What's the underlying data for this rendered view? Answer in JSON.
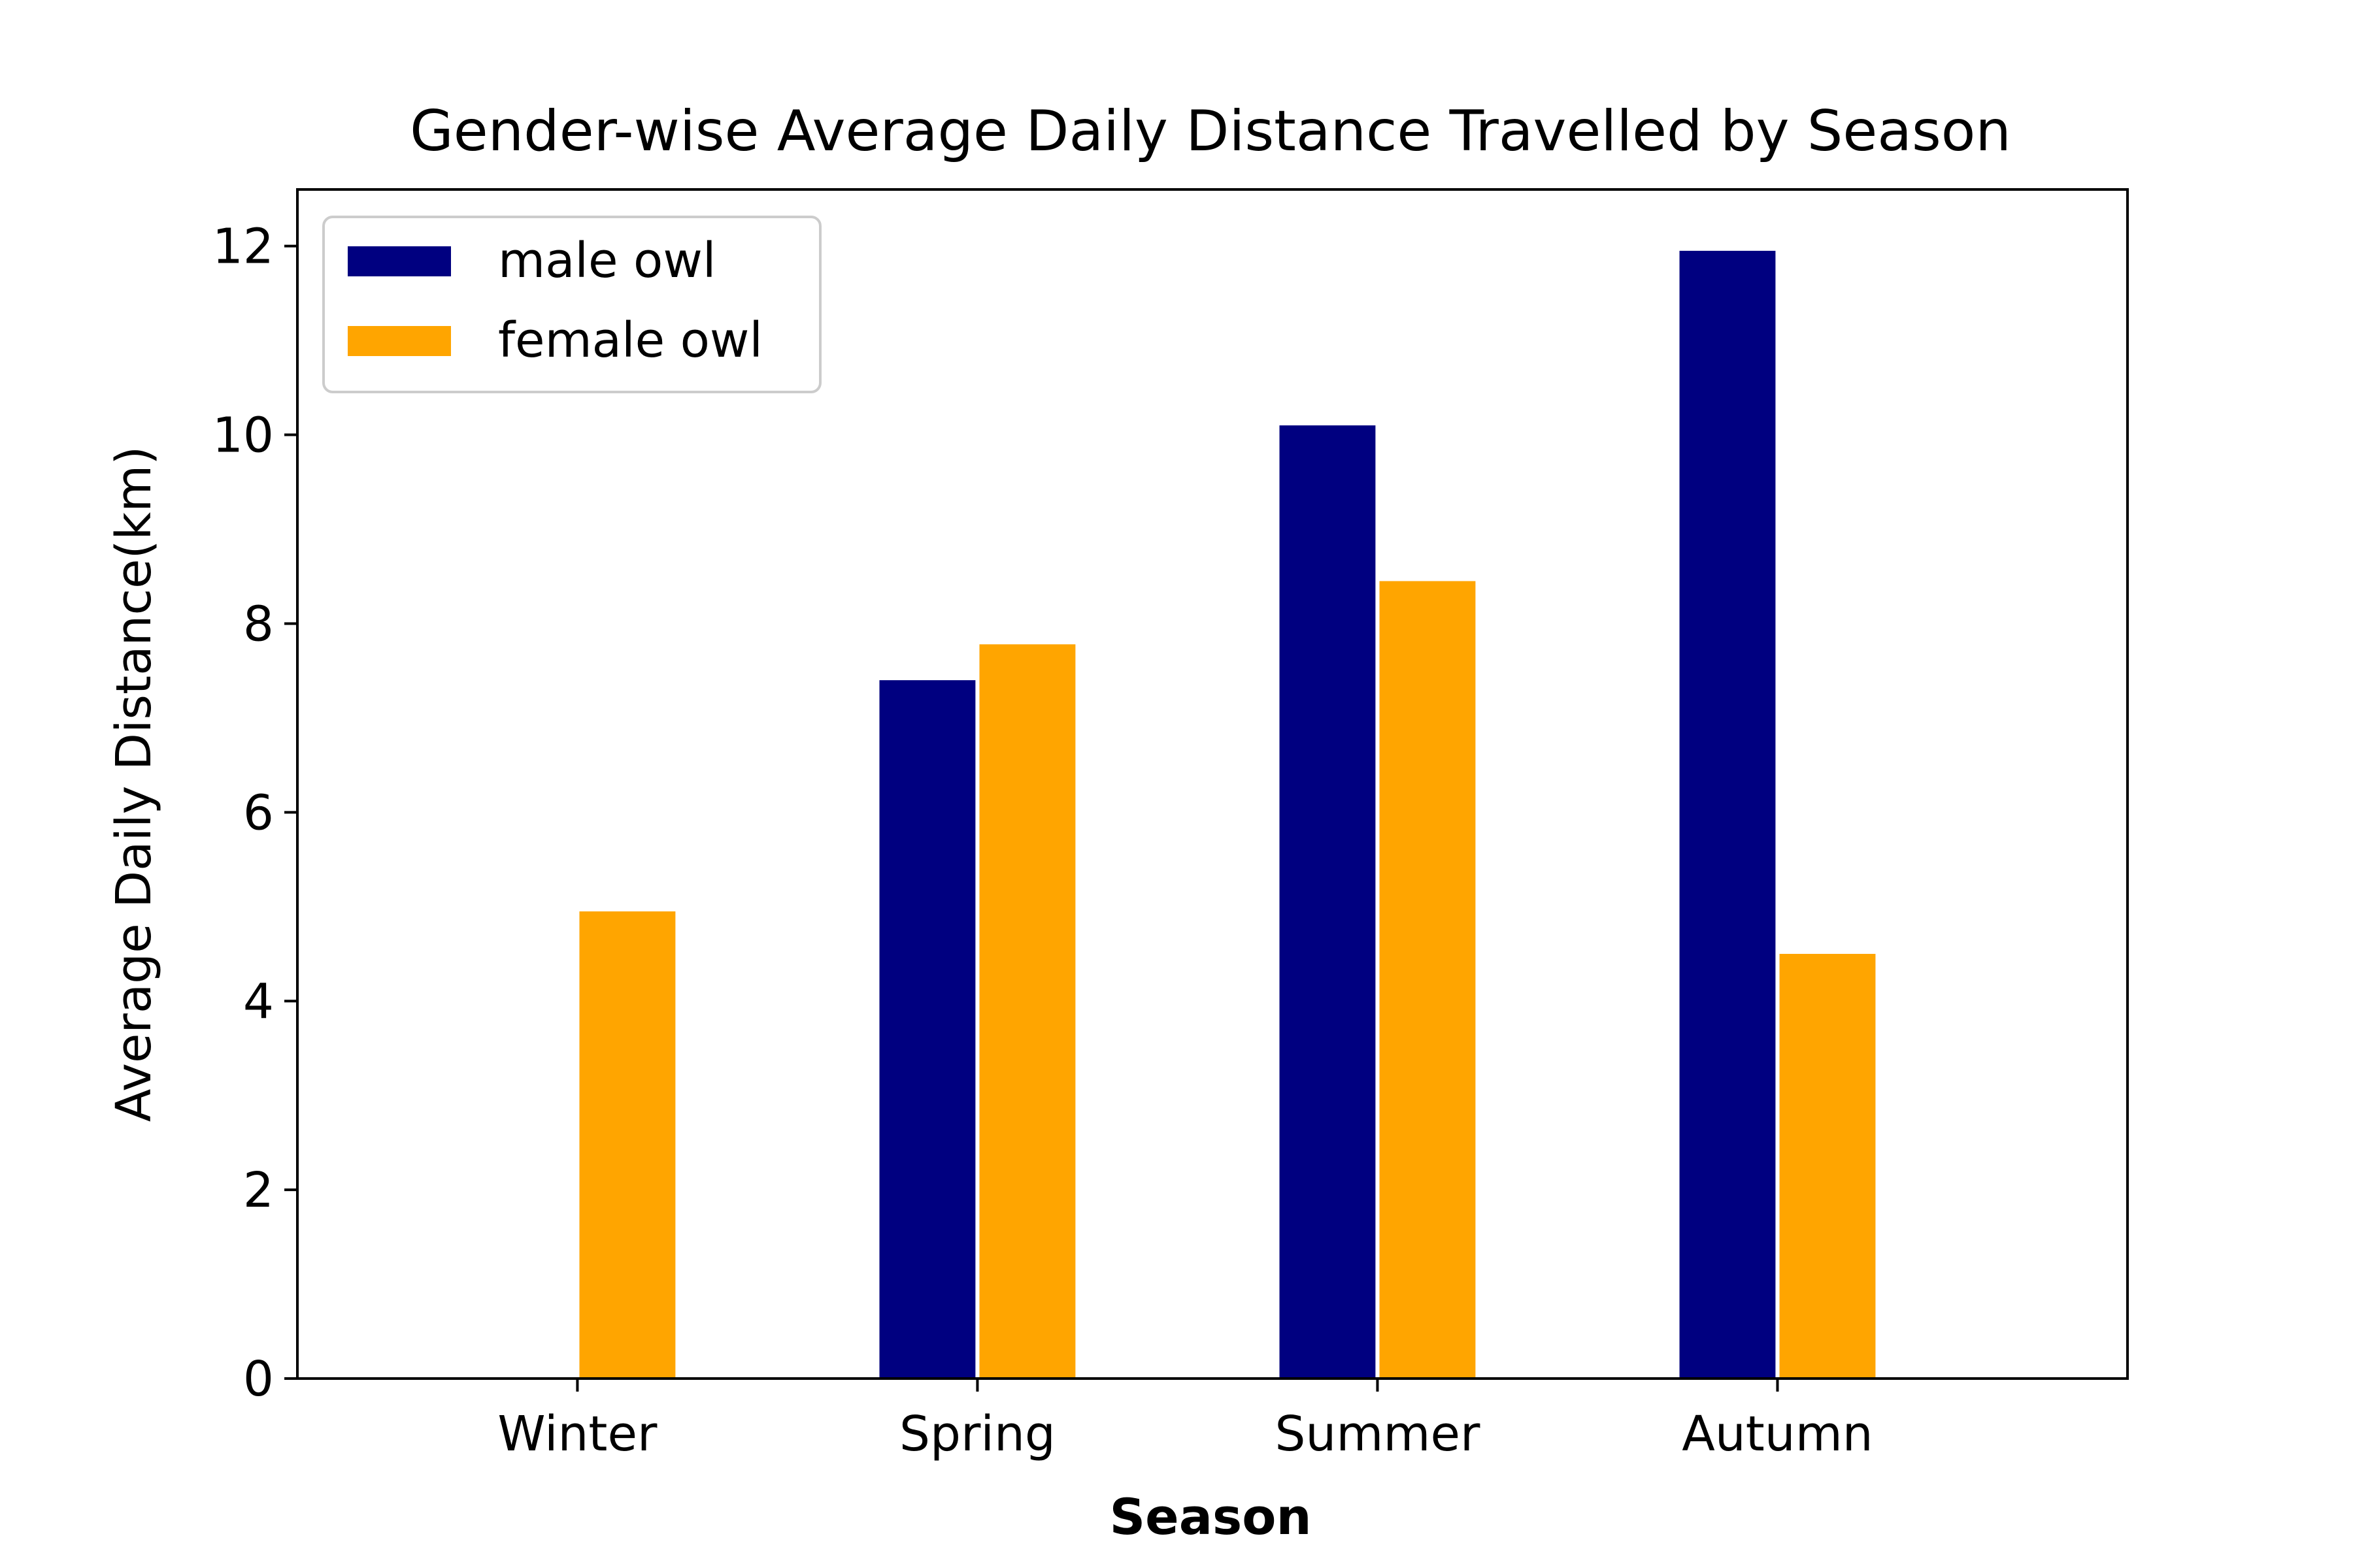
{
  "chart_data": {
    "type": "bar",
    "title": "Gender-wise Average Daily Distance Travelled by Season",
    "xlabel": "Season",
    "ylabel": "Average Daily Distance(km)",
    "categories": [
      "Winter",
      "Spring",
      "Summer",
      "Autumn"
    ],
    "series": [
      {
        "name": "male owl",
        "color": "#000080",
        "values": [
          0,
          7.4,
          10.1,
          11.95
        ]
      },
      {
        "name": "female owl",
        "color": "#FFA500",
        "values": [
          4.95,
          7.78,
          8.45,
          4.5
        ]
      }
    ],
    "ylim": [
      0,
      12.6
    ],
    "yticks": [
      0,
      2,
      4,
      6,
      8,
      10,
      12
    ],
    "grid": false,
    "legend_position": "top-left"
  }
}
